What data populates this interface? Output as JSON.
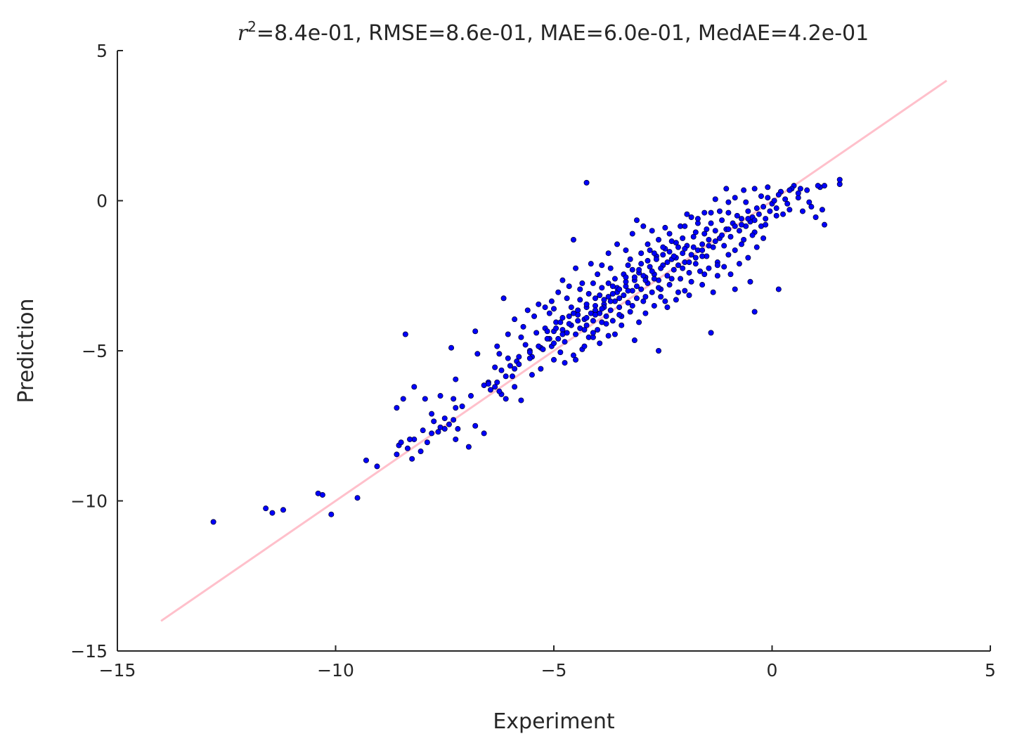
{
  "chart_data": {
    "type": "scatter",
    "title_prefix": "r",
    "title_superscript": "2",
    "title_rest": "=8.4e-01, RMSE=8.6e-01, MAE=6.0e-01, MedAE=4.2e-01",
    "xlabel": "Experiment",
    "ylabel": "Prediction",
    "xlim": [
      -15,
      5
    ],
    "ylim": [
      -15,
      5
    ],
    "x_ticks": [
      -15,
      -10,
      -5,
      0,
      5
    ],
    "y_ticks": [
      -15,
      -10,
      -5,
      0,
      5
    ],
    "x_tick_labels": [
      "−15",
      "−10",
      "−5",
      "0",
      "5"
    ],
    "y_tick_labels": [
      "−15",
      "−10",
      "−5",
      "0",
      "5"
    ],
    "grid": false,
    "point_color": "#0000ff",
    "point_edge_color": "#00003a",
    "line_color": "#ffc0cb",
    "reference_line": {
      "x": [
        -14,
        4
      ],
      "y": [
        -14,
        4
      ]
    },
    "points": [
      [
        -12.8,
        -10.7
      ],
      [
        -11.6,
        -10.25
      ],
      [
        -11.45,
        -10.4
      ],
      [
        -11.2,
        -10.3
      ],
      [
        -10.4,
        -9.75
      ],
      [
        -10.3,
        -9.8
      ],
      [
        -10.1,
        -10.45
      ],
      [
        -9.5,
        -9.9
      ],
      [
        -9.3,
        -8.65
      ],
      [
        -9.05,
        -8.85
      ],
      [
        -8.6,
        -8.45
      ],
      [
        -8.55,
        -8.15
      ],
      [
        -8.5,
        -8.05
      ],
      [
        -8.35,
        -8.25
      ],
      [
        -8.25,
        -8.6
      ],
      [
        -8.2,
        -7.95
      ],
      [
        -8.05,
        -8.35
      ],
      [
        -7.9,
        -8.05
      ],
      [
        -7.8,
        -7.75
      ],
      [
        -7.65,
        -7.7
      ],
      [
        -7.6,
        -7.55
      ],
      [
        -7.5,
        -7.6
      ],
      [
        -7.4,
        -7.45
      ],
      [
        -7.3,
        -7.3
      ],
      [
        -7.25,
        -7.95
      ],
      [
        -7.2,
        -7.6
      ],
      [
        -6.95,
        -8.2
      ],
      [
        -6.8,
        -7.5
      ],
      [
        -6.6,
        -7.75
      ],
      [
        -6.5,
        -6.05
      ],
      [
        -6.35,
        -6.2
      ],
      [
        -6.3,
        -6.05
      ],
      [
        -6.2,
        -6.45
      ],
      [
        -6.1,
        -6.6
      ],
      [
        -5.9,
        -6.2
      ],
      [
        -5.75,
        -6.65
      ],
      [
        -5.5,
        -5.8
      ],
      [
        -8.6,
        -6.9
      ],
      [
        -8.45,
        -6.6
      ],
      [
        -8.2,
        -6.2
      ],
      [
        -7.95,
        -6.6
      ],
      [
        -7.8,
        -7.1
      ],
      [
        -7.6,
        -6.5
      ],
      [
        -7.3,
        -6.6
      ],
      [
        -7.25,
        -6.9
      ],
      [
        -7.25,
        -5.95
      ],
      [
        -7.35,
        -4.9
      ],
      [
        -8.4,
        -4.45
      ],
      [
        -6.8,
        -4.35
      ],
      [
        -6.75,
        -5.1
      ],
      [
        -6.5,
        -6.1
      ],
      [
        -6.35,
        -5.55
      ],
      [
        -6.2,
        -5.65
      ],
      [
        -6.0,
        -5.5
      ],
      [
        -5.95,
        -5.85
      ],
      [
        -5.85,
        -5.35
      ],
      [
        -5.8,
        -5.2
      ],
      [
        -5.65,
        -4.8
      ],
      [
        -5.55,
        -5.0
      ],
      [
        -5.5,
        -5.2
      ],
      [
        -5.4,
        -4.4
      ],
      [
        -5.3,
        -4.9
      ],
      [
        -5.2,
        -4.25
      ],
      [
        -5.1,
        -4.6
      ],
      [
        -5.05,
        -4.85
      ],
      [
        -5.0,
        -4.35
      ],
      [
        -4.95,
        -4.05
      ],
      [
        -4.9,
        -4.6
      ],
      [
        -4.85,
        -5.05
      ],
      [
        -4.8,
        -4.3
      ],
      [
        -4.75,
        -4.7
      ],
      [
        -4.7,
        -4.4
      ],
      [
        -4.65,
        -3.85
      ],
      [
        -4.6,
        -4.15
      ],
      [
        -4.55,
        -5.15
      ],
      [
        -4.5,
        -4.45
      ],
      [
        -4.45,
        -3.65
      ],
      [
        -4.4,
        -4.25
      ],
      [
        -4.35,
        -4.95
      ],
      [
        -4.3,
        -3.95
      ],
      [
        -4.25,
        -4.15
      ],
      [
        -4.2,
        -4.55
      ],
      [
        -4.15,
        -3.75
      ],
      [
        -4.1,
        -4.0
      ],
      [
        -4.05,
        -3.5
      ],
      [
        -4.0,
        -4.3
      ],
      [
        -3.95,
        -3.75
      ],
      [
        -3.9,
        -4.05
      ],
      [
        -3.85,
        -3.45
      ],
      [
        -3.8,
        -3.85
      ],
      [
        -3.75,
        -3.2
      ],
      [
        -3.7,
        -3.65
      ],
      [
        -3.65,
        -4.0
      ],
      [
        -3.6,
        -3.35
      ],
      [
        -3.55,
        -3.05
      ],
      [
        -3.5,
        -3.55
      ],
      [
        -3.45,
        -3.85
      ],
      [
        -3.4,
        -3.15
      ],
      [
        -3.35,
        -2.85
      ],
      [
        -3.3,
        -3.4
      ],
      [
        -3.25,
        -3.7
      ],
      [
        -3.2,
        -3.0
      ],
      [
        -3.15,
        -2.65
      ],
      [
        -3.1,
        -3.25
      ],
      [
        -3.05,
        -2.4
      ],
      [
        -3.0,
        -2.95
      ],
      [
        -2.95,
        -3.35
      ],
      [
        -2.9,
        -2.55
      ],
      [
        -2.85,
        -2.75
      ],
      [
        -2.8,
        -2.2
      ],
      [
        -2.75,
        -3.05
      ],
      [
        -2.7,
        -2.45
      ],
      [
        -2.65,
        -1.85
      ],
      [
        -2.6,
        -2.65
      ],
      [
        -2.55,
        -2.95
      ],
      [
        -2.5,
        -2.15
      ],
      [
        -2.45,
        -1.6
      ],
      [
        -2.4,
        -2.5
      ],
      [
        -2.35,
        -2.8
      ],
      [
        -2.3,
        -1.95
      ],
      [
        -2.25,
        -2.3
      ],
      [
        -2.2,
        -1.4
      ],
      [
        -2.15,
        -2.15
      ],
      [
        -2.1,
        -2.6
      ],
      [
        -2.05,
        -1.75
      ],
      [
        -2.0,
        -2.05
      ],
      [
        -1.95,
        -1.5
      ],
      [
        -1.9,
        -2.4
      ],
      [
        -1.85,
        -1.8
      ],
      [
        -1.8,
        -1.2
      ],
      [
        -1.75,
        -2.1
      ],
      [
        -1.7,
        -1.65
      ],
      [
        -1.65,
        -2.35
      ],
      [
        -1.6,
        -1.45
      ],
      [
        -1.55,
        -1.1
      ],
      [
        -1.5,
        -1.85
      ],
      [
        -1.45,
        -1.3
      ],
      [
        -1.4,
        -0.75
      ],
      [
        -1.35,
        -1.55
      ],
      [
        -1.3,
        -1.0
      ],
      [
        -1.25,
        -2.05
      ],
      [
        -1.2,
        -1.25
      ],
      [
        -1.15,
        -0.65
      ],
      [
        -1.1,
        -1.5
      ],
      [
        -1.05,
        -0.95
      ],
      [
        -1.0,
        -0.4
      ],
      [
        -0.95,
        -1.2
      ],
      [
        -0.9,
        -0.75
      ],
      [
        -0.85,
        -1.65
      ],
      [
        -0.8,
        -0.5
      ],
      [
        -0.75,
        -1.0
      ],
      [
        -0.7,
        -0.6
      ],
      [
        -0.65,
        -1.3
      ],
      [
        -0.6,
        -0.85
      ],
      [
        -0.55,
        -0.35
      ],
      [
        -0.5,
        -0.7
      ],
      [
        -0.45,
        -0.55
      ],
      [
        -0.4,
        -1.05
      ],
      [
        -0.35,
        -0.25
      ],
      [
        -0.3,
        -0.45
      ],
      [
        -0.25,
        -0.85
      ],
      [
        -0.2,
        -0.2
      ],
      [
        -0.15,
        -0.6
      ],
      [
        -0.1,
        0.1
      ],
      [
        -0.05,
        -0.35
      ],
      [
        0.0,
        -0.1
      ],
      [
        0.1,
        -0.5
      ],
      [
        0.2,
        0.3
      ],
      [
        0.3,
        0.05
      ],
      [
        0.4,
        -0.3
      ],
      [
        0.5,
        0.5
      ],
      [
        0.6,
        0.1
      ],
      [
        0.7,
        -0.35
      ],
      [
        0.8,
        0.35
      ],
      [
        0.9,
        -0.2
      ],
      [
        1.0,
        -0.55
      ],
      [
        1.1,
        0.45
      ],
      [
        1.15,
        -0.3
      ],
      [
        1.2,
        -0.8
      ],
      [
        1.55,
        0.55
      ],
      [
        1.55,
        0.7
      ],
      [
        1.2,
        0.5
      ],
      [
        1.05,
        0.5
      ],
      [
        0.65,
        0.4
      ],
      [
        0.85,
        -0.05
      ],
      [
        0.6,
        0.25
      ],
      [
        0.45,
        0.4
      ],
      [
        0.35,
        -0.1
      ],
      [
        0.2,
        0.3
      ],
      [
        0.15,
        0.2
      ],
      [
        0.1,
        -0.25
      ],
      [
        -0.1,
        0.45
      ],
      [
        -0.4,
        0.4
      ],
      [
        -0.65,
        0.35
      ],
      [
        -0.85,
        0.1
      ],
      [
        -1.0,
        -0.05
      ],
      [
        -1.05,
        0.4
      ],
      [
        -1.3,
        0.05
      ],
      [
        -1.55,
        -0.4
      ],
      [
        -1.7,
        -0.75
      ],
      [
        -1.85,
        -0.55
      ],
      [
        -1.95,
        -0.45
      ],
      [
        -2.1,
        -0.85
      ],
      [
        -2.35,
        -1.1
      ],
      [
        -2.45,
        -0.9
      ],
      [
        -2.6,
        -1.3
      ],
      [
        -2.75,
        -1.0
      ],
      [
        -2.95,
        -0.85
      ],
      [
        -3.1,
        -0.65
      ],
      [
        -3.2,
        -1.1
      ],
      [
        -3.35,
        -1.65
      ],
      [
        -3.55,
        -1.45
      ],
      [
        -3.75,
        -1.75
      ],
      [
        -3.9,
        -2.15
      ],
      [
        -4.0,
        -2.45
      ],
      [
        -4.15,
        -2.1
      ],
      [
        -4.35,
        -2.75
      ],
      [
        -4.5,
        -2.25
      ],
      [
        -4.55,
        -1.3
      ],
      [
        -4.65,
        -2.85
      ],
      [
        -4.8,
        -2.65
      ],
      [
        -4.9,
        -3.05
      ],
      [
        -5.05,
        -3.35
      ],
      [
        -5.1,
        -3.75
      ],
      [
        -5.2,
        -3.55
      ],
      [
        -5.35,
        -3.45
      ],
      [
        -5.45,
        -3.85
      ],
      [
        -5.6,
        -3.65
      ],
      [
        -5.7,
        -4.2
      ],
      [
        -5.75,
        -4.55
      ],
      [
        -5.9,
        -3.95
      ],
      [
        -6.05,
        -4.45
      ],
      [
        -6.15,
        -3.25
      ],
      [
        -6.3,
        -4.85
      ],
      [
        -4.25,
        0.6
      ],
      [
        -0.4,
        -3.7
      ],
      [
        0.15,
        -2.95
      ],
      [
        -0.5,
        -2.7
      ],
      [
        -0.85,
        -2.95
      ],
      [
        -1.4,
        -4.4
      ],
      [
        -1.35,
        -3.05
      ],
      [
        -1.6,
        -2.8
      ],
      [
        -1.9,
        -3.15
      ],
      [
        -2.0,
        -3.0
      ],
      [
        -2.2,
        -3.3
      ],
      [
        -2.4,
        -3.55
      ],
      [
        -2.55,
        -3.2
      ],
      [
        -2.7,
        -3.5
      ],
      [
        -2.9,
        -3.75
      ],
      [
        -3.05,
        -4.05
      ],
      [
        -3.15,
        -4.65
      ],
      [
        -2.6,
        -5.0
      ],
      [
        -3.45,
        -4.15
      ],
      [
        -3.6,
        -4.45
      ],
      [
        -3.75,
        -4.5
      ],
      [
        -3.95,
        -4.75
      ],
      [
        -4.1,
        -4.55
      ],
      [
        -4.3,
        -4.85
      ],
      [
        -4.5,
        -5.3
      ],
      [
        -4.75,
        -5.4
      ],
      [
        -5.0,
        -5.3
      ],
      [
        -5.3,
        -5.6
      ],
      [
        -5.55,
        -5.05
      ],
      [
        -5.8,
        -5.45
      ],
      [
        -6.05,
        -5.25
      ],
      [
        -6.25,
        -5.1
      ],
      [
        -3.3,
        -2.15
      ],
      [
        -3.0,
        -1.75
      ],
      [
        -2.8,
        -1.65
      ],
      [
        -2.5,
        -1.55
      ],
      [
        -2.3,
        -1.35
      ],
      [
        -2.05,
        -1.25
      ],
      [
        -1.8,
        -1.55
      ],
      [
        -1.6,
        -1.85
      ],
      [
        -1.45,
        -2.25
      ],
      [
        -1.25,
        -2.5
      ],
      [
        -1.1,
        -2.2
      ],
      [
        -0.95,
        -2.45
      ],
      [
        -0.75,
        -2.1
      ],
      [
        -0.55,
        -1.9
      ],
      [
        -0.35,
        -1.55
      ],
      [
        -0.2,
        -1.25
      ],
      [
        -3.6,
        -2.6
      ],
      [
        -3.4,
        -2.45
      ],
      [
        -3.2,
        -2.3
      ],
      [
        -3.0,
        -2.1
      ],
      [
        -2.85,
        -2.0
      ],
      [
        -2.65,
        -1.95
      ],
      [
        -2.5,
        -1.8
      ],
      [
        -2.35,
        -1.7
      ],
      [
        -2.2,
        -1.9
      ],
      [
        -2.05,
        -2.25
      ],
      [
        -1.9,
        -2.05
      ],
      [
        -1.75,
        -1.9
      ],
      [
        -1.6,
        -1.65
      ],
      [
        -1.45,
        -1.5
      ],
      [
        -1.3,
        -1.35
      ],
      [
        -1.15,
        -1.15
      ],
      [
        -1.0,
        -0.95
      ],
      [
        -0.85,
        -0.85
      ],
      [
        -0.7,
        -0.8
      ],
      [
        -0.55,
        -0.6
      ],
      [
        -0.4,
        -0.65
      ],
      [
        -3.9,
        -2.9
      ],
      [
        -3.75,
        -2.75
      ],
      [
        -3.55,
        -2.9
      ],
      [
        -3.35,
        -2.7
      ],
      [
        -3.15,
        -2.55
      ],
      [
        -2.95,
        -2.5
      ],
      [
        -2.75,
        -2.35
      ],
      [
        -2.55,
        -2.25
      ],
      [
        -2.4,
        -2.05
      ],
      [
        -2.25,
        -1.85
      ],
      [
        -4.2,
        -3.1
      ],
      [
        -4.05,
        -3.25
      ],
      [
        -3.85,
        -3.3
      ],
      [
        -3.65,
        -3.1
      ],
      [
        -3.5,
        -2.95
      ],
      [
        -3.3,
        -3.0
      ],
      [
        -3.1,
        -2.85
      ],
      [
        -2.9,
        -2.65
      ],
      [
        -2.7,
        -2.6
      ],
      [
        -4.4,
        -3.3
      ],
      [
        -4.25,
        -3.55
      ],
      [
        -4.05,
        -3.65
      ],
      [
        -3.85,
        -3.55
      ],
      [
        -3.7,
        -3.35
      ],
      [
        -3.5,
        -3.25
      ],
      [
        -4.6,
        -3.55
      ],
      [
        -4.45,
        -3.8
      ],
      [
        -4.25,
        -3.9
      ],
      [
        -4.05,
        -3.8
      ],
      [
        -3.9,
        -3.6
      ],
      [
        -4.8,
        -3.9
      ],
      [
        -4.65,
        -4.1
      ],
      [
        -4.45,
        -4.0
      ],
      [
        -4.3,
        -4.3
      ],
      [
        -4.95,
        -4.25
      ],
      [
        -4.8,
        -4.45
      ],
      [
        -5.15,
        -4.6
      ],
      [
        -5.0,
        -4.75
      ],
      [
        -5.35,
        -4.85
      ],
      [
        -5.25,
        -4.95
      ],
      [
        -5.55,
        -5.25
      ],
      [
        -5.9,
        -5.6
      ],
      [
        -6.1,
        -5.85
      ],
      [
        -6.25,
        -6.35
      ],
      [
        -6.45,
        -6.3
      ],
      [
        -6.6,
        -6.15
      ],
      [
        -6.9,
        -6.5
      ],
      [
        -7.1,
        -6.85
      ],
      [
        -7.5,
        -7.25
      ],
      [
        -7.75,
        -7.35
      ],
      [
        -8.0,
        -7.65
      ],
      [
        -8.3,
        -7.95
      ],
      [
        -1.2,
        -0.35
      ],
      [
        -1.5,
        -0.95
      ],
      [
        -1.75,
        -1.05
      ],
      [
        -2.15,
        -1.55
      ],
      [
        -2.7,
        -1.75
      ],
      [
        -0.6,
        -0.05
      ],
      [
        -0.25,
        0.15
      ],
      [
        0.05,
        0.0
      ],
      [
        0.4,
        0.35
      ],
      [
        -2.0,
        -1.6
      ],
      [
        -2.3,
        -2.6
      ],
      [
        -2.6,
        -2.9
      ],
      [
        -2.9,
        -3.2
      ],
      [
        -3.2,
        -3.5
      ],
      [
        -3.5,
        -3.8
      ],
      [
        -3.8,
        -4.1
      ],
      [
        -4.1,
        -4.4
      ],
      [
        -3.05,
        -2.3
      ],
      [
        -3.35,
        -2.55
      ],
      [
        -3.65,
        -2.85
      ],
      [
        -3.95,
        -3.15
      ],
      [
        -4.25,
        -3.45
      ],
      [
        -4.55,
        -3.75
      ],
      [
        -4.85,
        -4.05
      ],
      [
        -5.15,
        -4.35
      ],
      [
        -1.0,
        -1.8
      ],
      [
        -0.7,
        -1.45
      ],
      [
        -0.45,
        -1.15
      ],
      [
        -0.15,
        -0.8
      ],
      [
        0.25,
        -0.45
      ],
      [
        -2.45,
        -3.35
      ],
      [
        -2.15,
        -3.05
      ],
      [
        -1.85,
        -2.7
      ],
      [
        -1.55,
        -2.45
      ],
      [
        -1.25,
        -2.15
      ],
      [
        -2.0,
        -0.85
      ],
      [
        -1.7,
        -0.6
      ],
      [
        -1.4,
        -0.4
      ],
      [
        -2.85,
        -1.45
      ],
      [
        -3.25,
        -1.95
      ],
      [
        -3.7,
        -2.25
      ],
      [
        -4.1,
        -2.75
      ],
      [
        -4.4,
        -2.95
      ],
      [
        -4.7,
        -3.25
      ],
      [
        -5.0,
        -3.6
      ]
    ]
  }
}
